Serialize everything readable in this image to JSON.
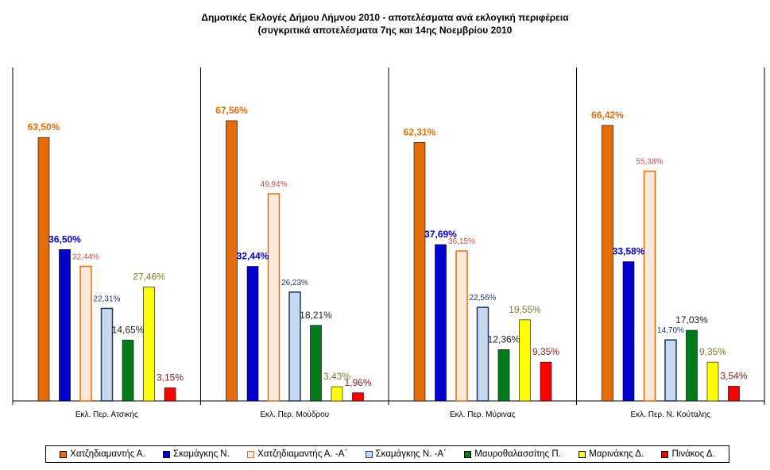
{
  "chart_data": {
    "type": "bar",
    "title": "Δημοτικές Εκλογές Δήμου Λήμνου 2010  - αποτελέσματα ανά εκλογική  περιφέρεια",
    "subtitle": "(συγκριτικά αποτελέσματα 7ης και 14ης Νοεμβρίου 2010",
    "categories": [
      "Εκλ. Περ. Ατσικής",
      "Εκλ. Περ. Μούδρου",
      "Εκλ. Περ. Μύρινας",
      "Εκλ. Περ. Ν. Κούταλης"
    ],
    "ylim": [
      0,
      80
    ],
    "grid": false,
    "legend_position": "bottom",
    "series": [
      {
        "name": "Χατζηδιαμαντής Α.",
        "color": "#e46c0a",
        "label_color": "#e46c0a",
        "outline_only": false,
        "values": [
          63.5,
          67.56,
          62.31,
          66.42
        ],
        "labels": [
          "63,50%",
          "67,56%",
          "62,31%",
          "66,42%"
        ]
      },
      {
        "name": "Σκαμάγκης Ν.",
        "color": "#0000cc",
        "label_color": "#0000cc",
        "outline_only": false,
        "values": [
          36.5,
          32.44,
          37.69,
          33.58
        ],
        "labels": [
          "36,50%",
          "32,44%",
          "37,69%",
          "33,58%"
        ]
      },
      {
        "name": "Χατζηδιαμαντής Α. -Α΄",
        "color": "#fde9d9",
        "stroke": "#e46c0a",
        "label_color": "#c0504d",
        "outline_only": true,
        "values": [
          32.44,
          49.94,
          36.15,
          55.38
        ],
        "labels": [
          "32,44%",
          "49,94%",
          "36,15%",
          "55,38%"
        ]
      },
      {
        "name": "Σκαμάγκης Ν. -Α΄",
        "color": "#c6d9f1",
        "stroke": "#1f3864",
        "label_color": "#1f3864",
        "outline_only": true,
        "values": [
          22.31,
          26.23,
          22.56,
          14.7
        ],
        "labels": [
          "22,31%",
          "26,23%",
          "22,56%",
          "14,70%"
        ]
      },
      {
        "name": "Μαυροθαλασσίτης Π.",
        "color": "#007a1a",
        "label_color": "#222222",
        "outline_only": false,
        "values": [
          14.65,
          18.21,
          12.36,
          17.03
        ],
        "labels": [
          "14,65%",
          "18,21%",
          "12,36%",
          "17,03%"
        ]
      },
      {
        "name": "Μαρινάκης Δ.",
        "color": "#ffff00",
        "label_color": "#8a7a30",
        "outline_only": false,
        "values": [
          27.46,
          3.43,
          19.55,
          9.35
        ],
        "labels": [
          "27,46%",
          "3,43%",
          "19,55%",
          "9,35%"
        ]
      },
      {
        "name": "Πινάκος Δ.",
        "color": "#ff0000",
        "label_color": "#8b1a1a",
        "outline_only": false,
        "values": [
          3.15,
          1.96,
          9.35,
          3.54
        ],
        "labels": [
          "3,15%",
          "1,96%",
          "9,35%",
          "3,54%"
        ]
      }
    ]
  }
}
